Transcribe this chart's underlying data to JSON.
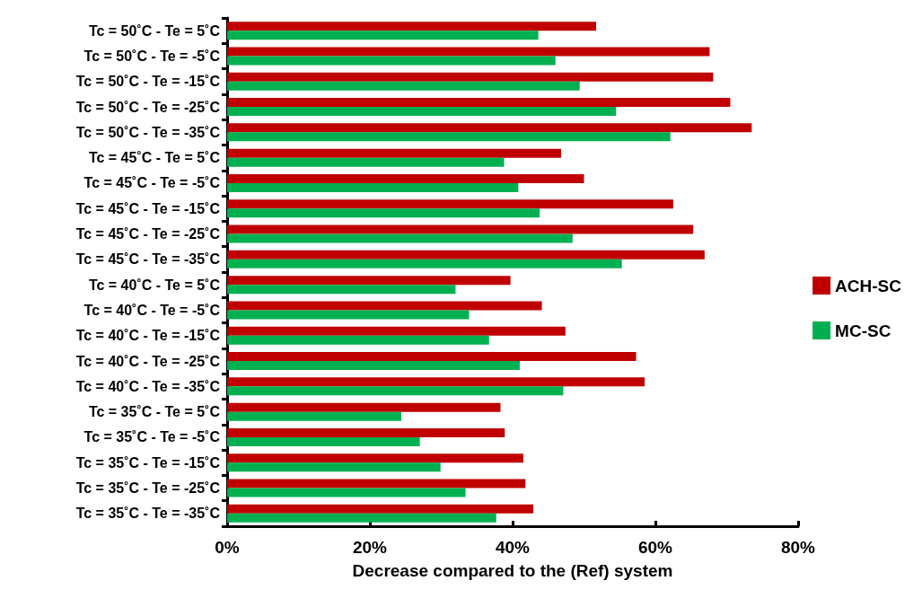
{
  "chart_data": {
    "type": "bar",
    "orientation": "horizontal",
    "xlabel": "Decrease compared to the (Ref) system",
    "categories": [
      "Tc = 50˚C - Te = 5˚C",
      "Tc = 50˚C - Te = -5˚C",
      "Tc = 50˚C - Te = -15˚C",
      "Tc = 50˚C - Te = -25˚C",
      "Tc = 50˚C - Te = -35˚C",
      "Tc = 45˚C - Te = 5˚C",
      "Tc = 45˚C - Te = -5˚C",
      "Tc = 45˚C - Te = -15˚C",
      "Tc = 45˚C - Te = -25˚C",
      "Tc = 45˚C - Te = -35˚C",
      "Tc = 40˚C - Te = 5˚C",
      "Tc = 40˚C - Te = -5˚C",
      "Tc = 40˚C - Te = -15˚C",
      "Tc = 40˚C - Te = -25˚C",
      "Tc = 40˚C - Te = -35˚C",
      "Tc = 35˚C - Te = 5˚C",
      "Tc = 35˚C - Te = -5˚C",
      "Tc = 35˚C - Te = -15˚C",
      "Tc = 35˚C - Te = -25˚C",
      "Tc = 35˚C - Te = -35˚C"
    ],
    "series": [
      {
        "name": "ACH-SC",
        "color": "#c00000",
        "values": [
          51.7,
          67.6,
          68.1,
          70.5,
          73.5,
          46.8,
          50.0,
          62.5,
          65.3,
          66.9,
          39.7,
          44.1,
          47.4,
          57.3,
          58.5,
          38.3,
          38.9,
          41.5,
          41.8,
          42.9
        ]
      },
      {
        "name": "MC-SC",
        "color": "#00b050",
        "values": [
          43.6,
          46.0,
          49.4,
          54.5,
          62.1,
          38.8,
          40.8,
          43.8,
          48.4,
          55.3,
          32.0,
          33.9,
          36.7,
          41.0,
          47.1,
          24.4,
          27.0,
          29.9,
          33.4,
          37.7
        ]
      }
    ],
    "xlim": [
      0,
      80
    ],
    "xticks": [
      {
        "value": 0,
        "label": "0%"
      },
      {
        "value": 20,
        "label": "20%"
      },
      {
        "value": 40,
        "label": "40%"
      },
      {
        "value": 60,
        "label": "60%"
      },
      {
        "value": 80,
        "label": "80%"
      }
    ],
    "grid": false,
    "legend": "right"
  }
}
